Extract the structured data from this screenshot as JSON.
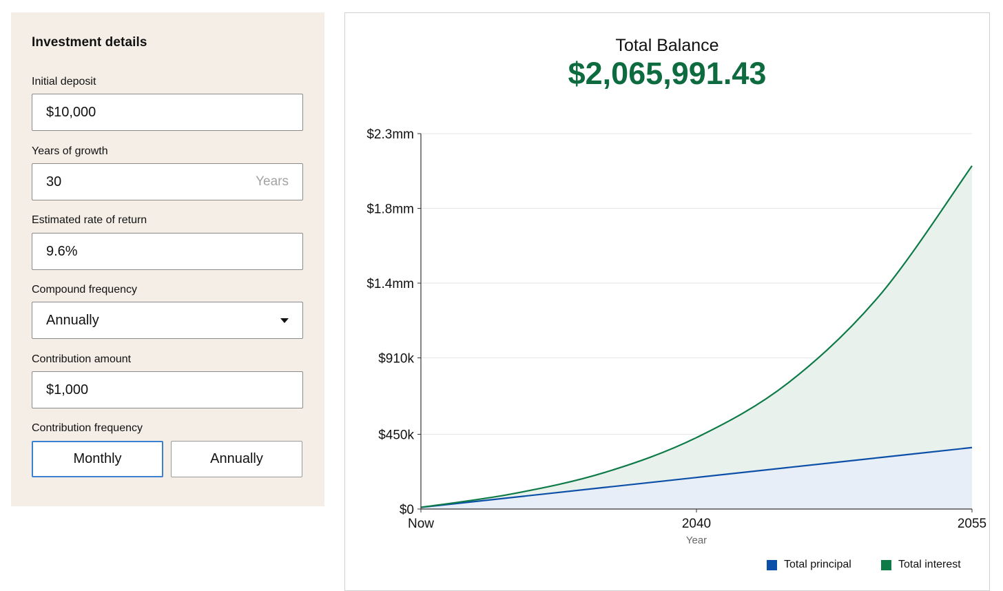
{
  "form": {
    "title": "Investment details",
    "initial_deposit": {
      "label": "Initial deposit",
      "value": "$10,000"
    },
    "years": {
      "label": "Years of growth",
      "value": "30",
      "suffix": "Years"
    },
    "rate": {
      "label": "Estimated rate of return",
      "value": "9.6%"
    },
    "compound": {
      "label": "Compound frequency",
      "value": "Annually"
    },
    "contribution": {
      "label": "Contribution amount",
      "value": "$1,000"
    },
    "contribution_frequency": {
      "label": "Contribution frequency",
      "options": [
        "Monthly",
        "Annually"
      ],
      "selected": "Monthly"
    }
  },
  "summary": {
    "title": "Total Balance",
    "value": "$2,065,991.43"
  },
  "chart_data": {
    "type": "area",
    "xlabel": "Year",
    "ylabel": "",
    "x_ticks": [
      {
        "label": "Now",
        "year": 2025
      },
      {
        "label": "2040",
        "year": 2040
      },
      {
        "label": "2055",
        "year": 2055
      }
    ],
    "y_ticks": [
      {
        "label": "$0",
        "value": 0
      },
      {
        "label": "$450k",
        "value": 450000
      },
      {
        "label": "$910k",
        "value": 910000
      },
      {
        "label": "$1.4mm",
        "value": 1360000
      },
      {
        "label": "$1.8mm",
        "value": 1810000
      },
      {
        "label": "$2.3mm",
        "value": 2260000
      }
    ],
    "xlim": [
      2025,
      2055
    ],
    "ylim": [
      0,
      2260000
    ],
    "grid": true,
    "legend_position": "bottom-right",
    "years": [
      2025,
      2030,
      2035,
      2040,
      2045,
      2050,
      2055
    ],
    "series": [
      {
        "name": "Total principal",
        "color": "#0b4fa8",
        "fill": "#e8eef7",
        "values": [
          10000,
          70000,
          130000,
          190000,
          250000,
          310000,
          370000
        ]
      },
      {
        "name": "Total interest",
        "color": "#0d7a47",
        "fill": "#e9f1ec",
        "values": [
          10000,
          92000,
          220000,
          430000,
          760000,
          1290000,
          2065991
        ]
      }
    ]
  }
}
